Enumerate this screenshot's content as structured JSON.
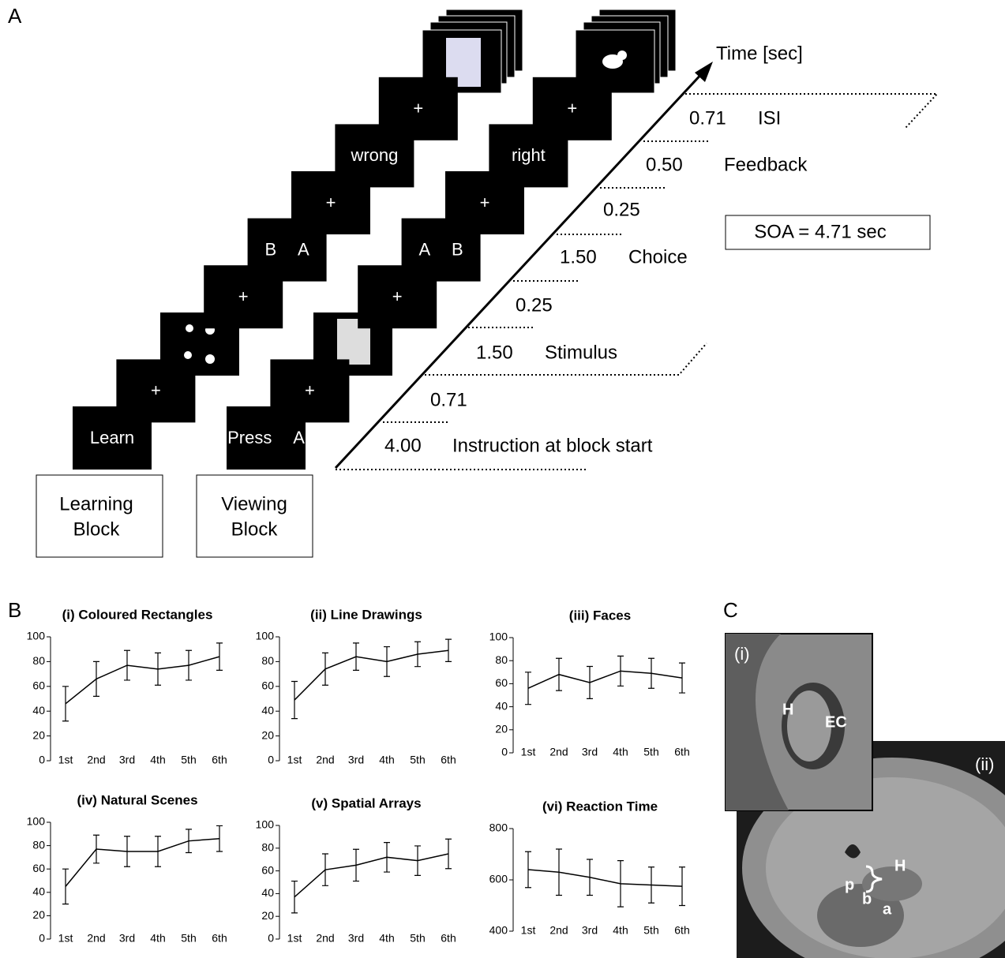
{
  "panel_labels": [
    "A",
    "B",
    "C"
  ],
  "panel_a": {
    "time_label": "Time [sec]",
    "soa": "SOA = 4.71 sec",
    "learning_block": [
      "Learning",
      "Block"
    ],
    "viewing_block": [
      "Viewing",
      "Block"
    ],
    "learning_screens": [
      "Learn",
      "+",
      "+",
      "B A",
      "+",
      "wrong",
      "+"
    ],
    "viewing_screens": [
      "Press A",
      "+",
      "+",
      "A B",
      "+",
      "right",
      "+"
    ],
    "timeline": [
      {
        "duration": "4.00",
        "event": "Instruction at block start"
      },
      {
        "duration": "0.71"
      },
      {
        "duration": "1.50",
        "event": "Stimulus"
      },
      {
        "duration": "0.25"
      },
      {
        "duration": "1.50",
        "event": "Choice"
      },
      {
        "duration": "0.25"
      },
      {
        "duration": "0.50",
        "event": "Feedback"
      },
      {
        "duration": "0.71",
        "event": "ISI"
      }
    ]
  },
  "chart_data": [
    {
      "type": "line",
      "title": "(i) Coloured Rectangles",
      "categories": [
        "1st",
        "2nd",
        "3rd",
        "4th",
        "5th",
        "6th"
      ],
      "values": [
        46,
        66,
        77,
        74,
        77,
        84
      ],
      "errors": [
        14,
        14,
        12,
        13,
        12,
        11
      ],
      "ylim": [
        0,
        100
      ],
      "yticks": [
        0,
        20,
        40,
        60,
        80,
        100
      ],
      "color": "#000000"
    },
    {
      "type": "line",
      "title": "(ii) Line Drawings",
      "categories": [
        "1st",
        "2nd",
        "3rd",
        "4th",
        "5th",
        "6th"
      ],
      "values": [
        49,
        74,
        84,
        80,
        86,
        89
      ],
      "errors": [
        15,
        13,
        11,
        12,
        10,
        9
      ],
      "ylim": [
        0,
        100
      ],
      "yticks": [
        0,
        20,
        40,
        60,
        80,
        100
      ],
      "color": "#000000"
    },
    {
      "type": "line",
      "title": "(iii) Faces",
      "categories": [
        "1st",
        "2nd",
        "3rd",
        "4th",
        "5th",
        "6th"
      ],
      "values": [
        56,
        68,
        61,
        71,
        69,
        65
      ],
      "errors": [
        14,
        14,
        14,
        13,
        13,
        13
      ],
      "ylim": [
        0,
        100
      ],
      "yticks": [
        0,
        20,
        40,
        60,
        80,
        100
      ],
      "color": "#000000"
    },
    {
      "type": "line",
      "title": "(iv) Natural Scenes",
      "categories": [
        "1st",
        "2nd",
        "3rd",
        "4th",
        "5th",
        "6th"
      ],
      "values": [
        45,
        77,
        75,
        75,
        84,
        86
      ],
      "errors": [
        15,
        12,
        13,
        13,
        10,
        11
      ],
      "ylim": [
        0,
        100
      ],
      "yticks": [
        0,
        20,
        40,
        60,
        80,
        100
      ],
      "color": "#000000"
    },
    {
      "type": "line",
      "title": "(v) Spatial Arrays",
      "categories": [
        "1st",
        "2nd",
        "3rd",
        "4th",
        "5th",
        "6th"
      ],
      "values": [
        37,
        61,
        65,
        72,
        69,
        75
      ],
      "errors": [
        14,
        14,
        14,
        13,
        13,
        13
      ],
      "ylim": [
        0,
        100
      ],
      "yticks": [
        0,
        20,
        40,
        60,
        80,
        100
      ],
      "color": "#000000"
    },
    {
      "type": "line",
      "title": "(vi) Reaction Time",
      "categories": [
        "1st",
        "2nd",
        "3rd",
        "4th",
        "5th",
        "6th"
      ],
      "values": [
        640,
        630,
        610,
        585,
        580,
        575
      ],
      "errors": [
        70,
        90,
        70,
        90,
        70,
        75
      ],
      "ylim": [
        400,
        800
      ],
      "yticks": [
        400,
        600,
        800
      ],
      "color": "#000000"
    }
  ],
  "panel_c": {
    "inset_label": "(i)",
    "inset_h": "H",
    "inset_ec": "EC",
    "main_label": "(ii)",
    "main_h": "H",
    "p": "p",
    "b": "b",
    "a": "a"
  }
}
